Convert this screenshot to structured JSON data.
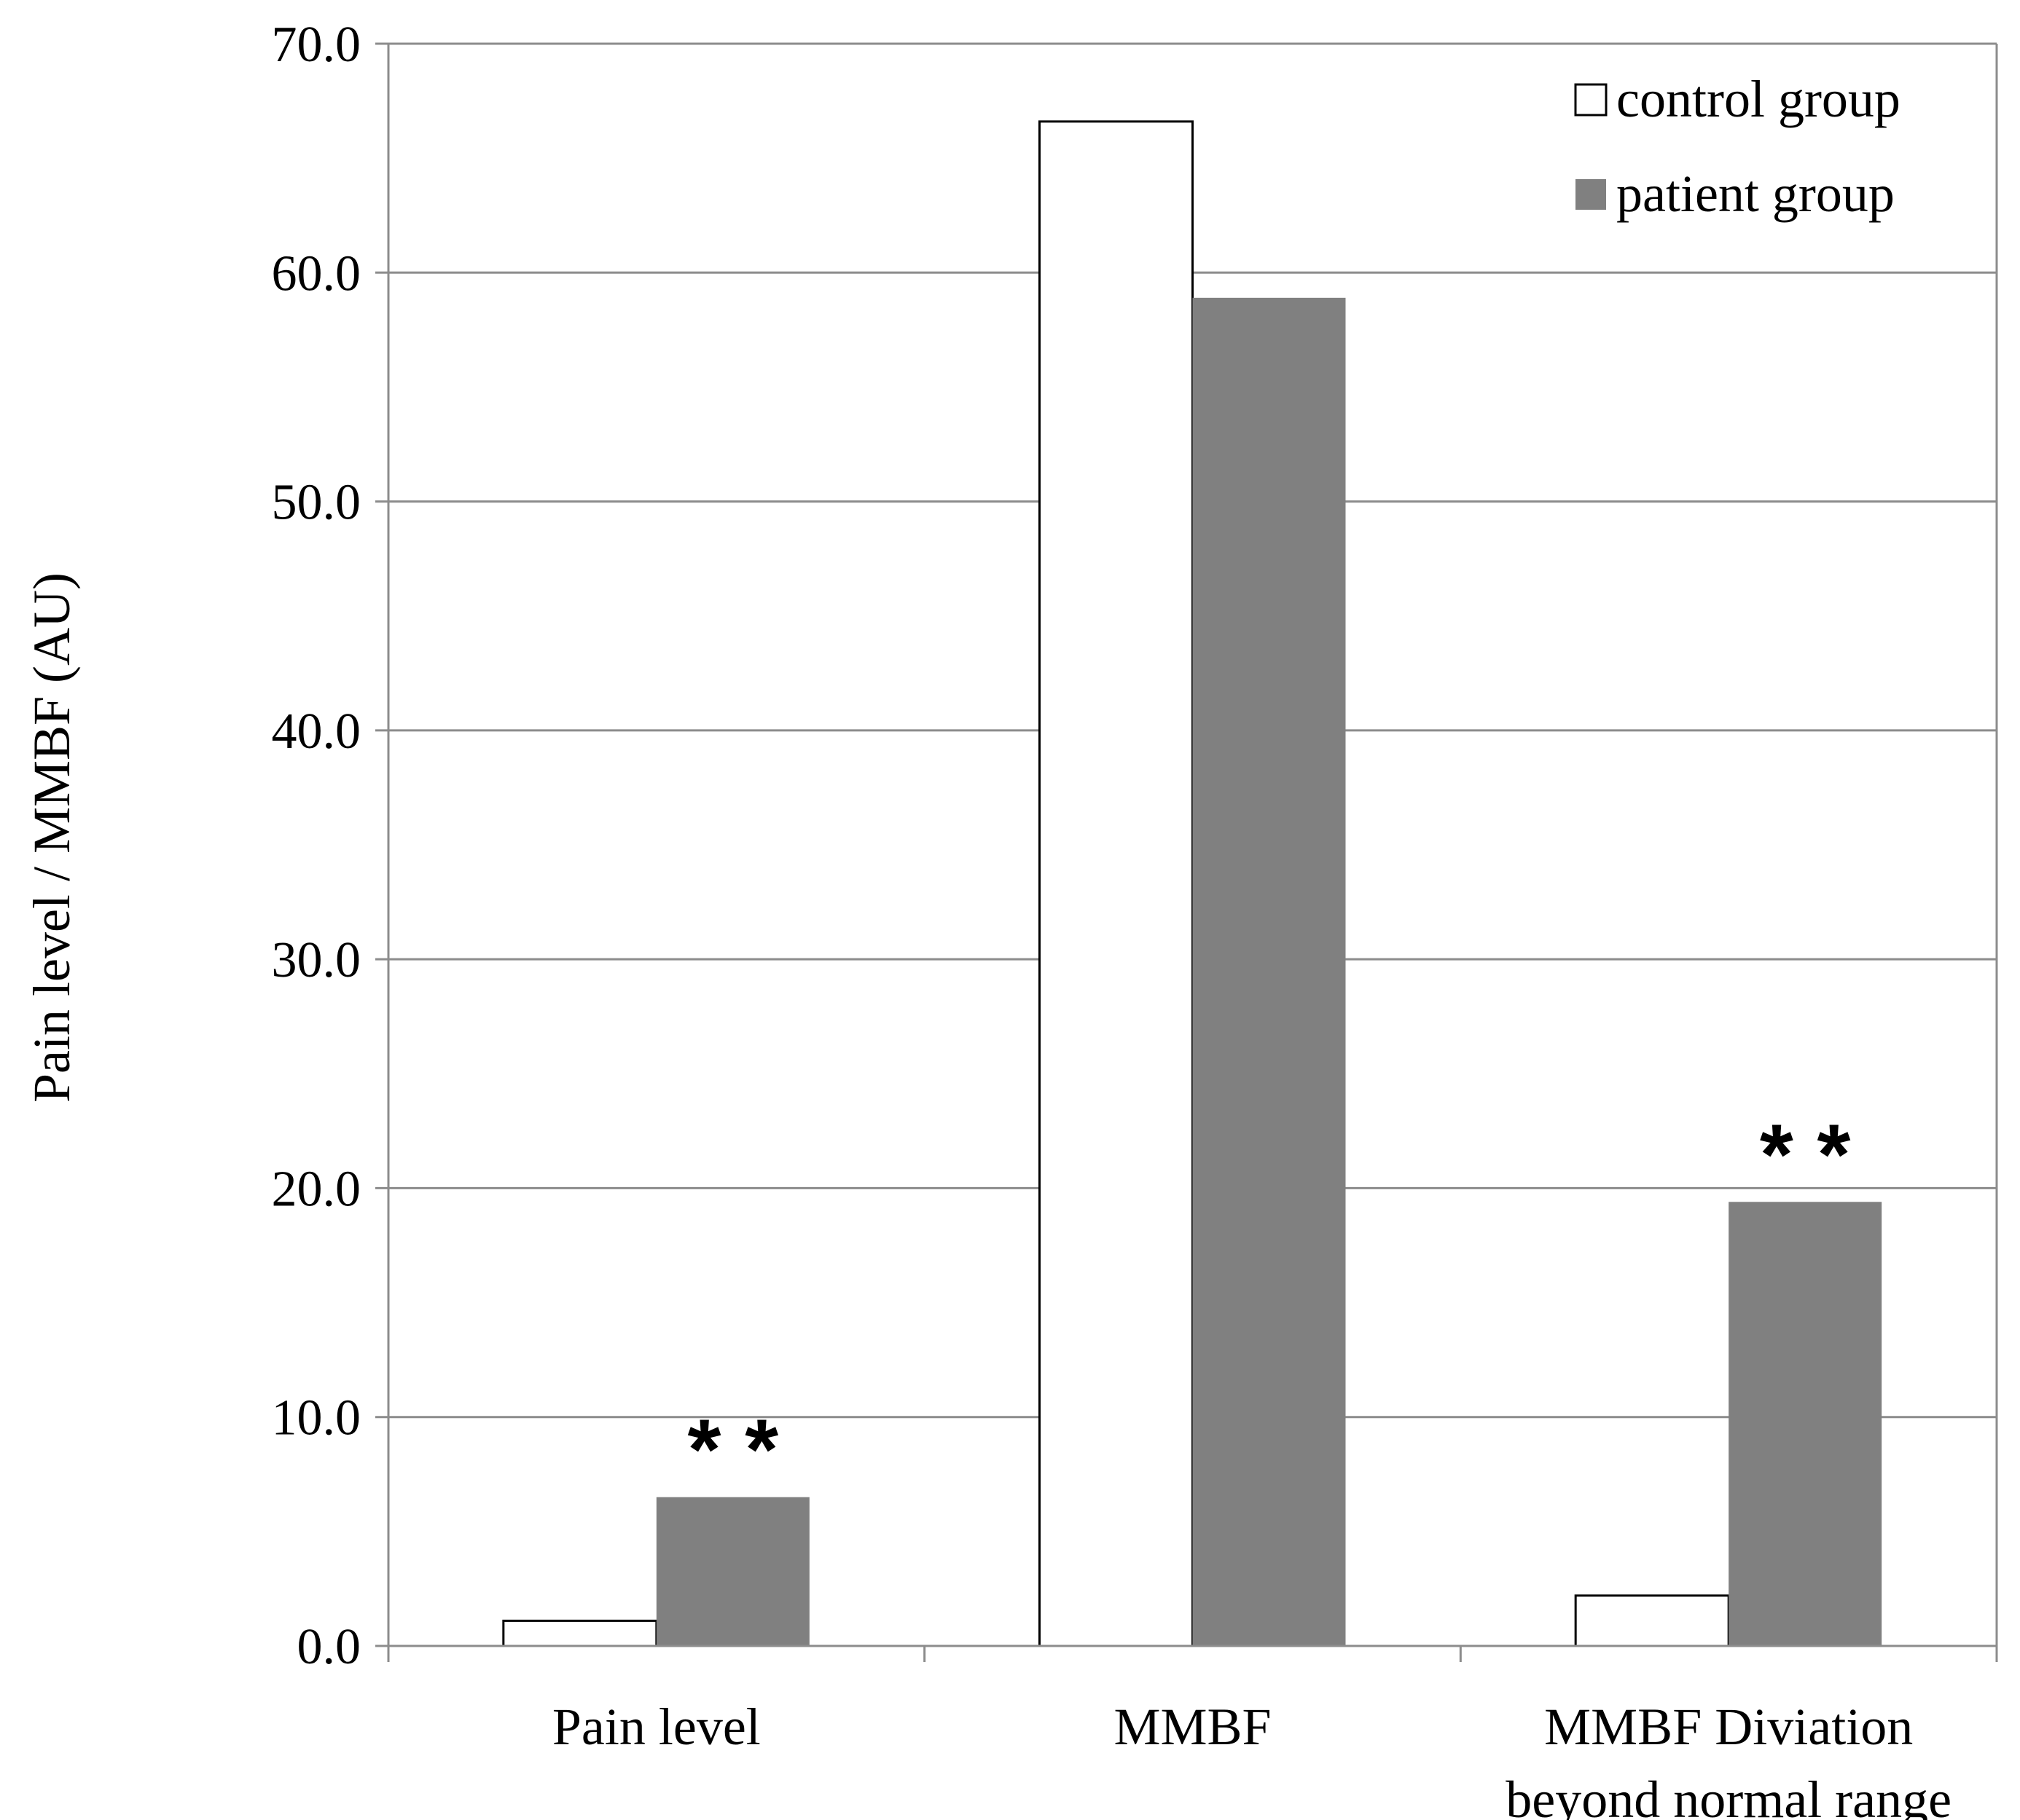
{
  "chart_data": {
    "type": "bar",
    "title": "",
    "xlabel": "",
    "ylabel": "Pain level / MMBF (AU)",
    "ylim": [
      0,
      70
    ],
    "y_ticks": [
      "0.0",
      "10.0",
      "20.0",
      "30.0",
      "40.0",
      "50.0",
      "60.0",
      "70.0"
    ],
    "grid": true,
    "legend_position": "top-right",
    "categories": [
      [
        "Pain level"
      ],
      [
        "MMBF"
      ],
      [
        "MMBF Diviation",
        "beyond normal range"
      ]
    ],
    "series": [
      {
        "name": "control group",
        "color": "#ffffff",
        "values": [
          1.1,
          66.6,
          2.2
        ]
      },
      {
        "name": "patient group",
        "color": "#808080",
        "values": [
          6.5,
          58.9,
          19.4
        ]
      }
    ],
    "annotations": [
      {
        "text": "**",
        "category_index": 0,
        "series_index": 1
      },
      {
        "text": "**",
        "category_index": 2,
        "series_index": 1
      }
    ]
  }
}
